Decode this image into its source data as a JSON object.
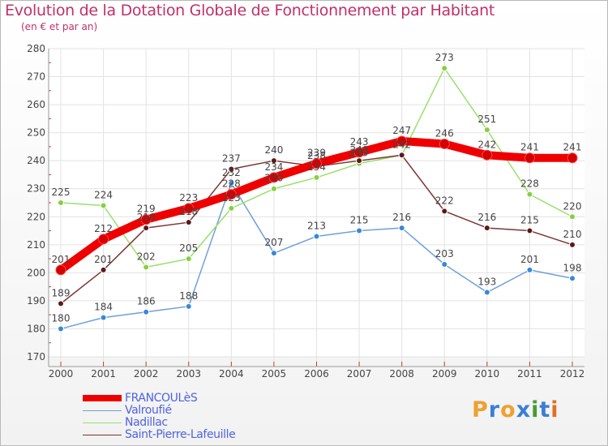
{
  "chart_data": {
    "type": "line",
    "title": "Evolution de la Dotation Globale de Fonctionnement par Habitant",
    "subtitle": "(en € et par an)",
    "x": [
      2000,
      2001,
      2002,
      2003,
      2004,
      2005,
      2006,
      2007,
      2008,
      2009,
      2010,
      2011,
      2012
    ],
    "x_tick_labels": [
      "2000",
      "2001",
      "2002",
      "2003",
      "2004",
      "2005",
      "2006",
      "2007",
      "2008",
      "2009",
      "2010",
      "2011",
      "2012"
    ],
    "ylim": [
      170,
      280
    ],
    "y_ticks": [
      170,
      180,
      190,
      200,
      210,
      220,
      230,
      240,
      250,
      260,
      270,
      280
    ],
    "grid": true,
    "series": [
      {
        "name": "FRANCOULèS",
        "color": "#ee0000",
        "marker": "#d40000",
        "emphasis": true,
        "values": [
          201,
          212,
          219,
          223,
          228,
          234,
          239,
          243,
          247,
          246,
          242,
          241,
          241
        ]
      },
      {
        "name": "Valroufié",
        "color": "#6fa0d8",
        "marker": "#3a88d6",
        "emphasis": false,
        "values": [
          180,
          184,
          186,
          188,
          232,
          207,
          213,
          215,
          216,
          203,
          193,
          201,
          198
        ]
      },
      {
        "name": "Nadillac",
        "color": "#99e06a",
        "marker": "#86d040",
        "emphasis": false,
        "values": [
          225,
          224,
          202,
          205,
          223,
          230,
          234,
          239,
          242,
          273,
          251,
          228,
          220
        ]
      },
      {
        "name": "Saint-Pierre-Lafeuille",
        "color": "#7b3535",
        "marker": "#5a1a1a",
        "emphasis": false,
        "values": [
          189,
          201,
          216,
          218,
          237,
          240,
          238,
          240,
          242,
          222,
          216,
          215,
          210
        ]
      }
    ],
    "data_labels": [
      {
        "series": 1,
        "values": [
          "180",
          "184",
          "186",
          "188",
          "232",
          "207",
          "213",
          "215",
          "216",
          "203",
          "193",
          "201",
          "198"
        ]
      },
      {
        "series": 2,
        "values": [
          "225",
          "224",
          "202",
          "205",
          "223",
          "230",
          "234",
          "239",
          "242",
          "273",
          "251",
          "228",
          "220"
        ]
      },
      {
        "series": 3,
        "values": [
          "189",
          "201",
          "216",
          "218",
          "237",
          "240",
          "238",
          "240",
          "242",
          "222",
          "216",
          "215",
          "210"
        ]
      },
      {
        "series": 0,
        "values": [
          "201",
          "212",
          "219",
          "223",
          "228",
          "234",
          "239",
          "243",
          "247",
          "246",
          "242",
          "241",
          "241"
        ]
      }
    ],
    "legend_position": "bottom-left"
  },
  "logo": {
    "letters": [
      "P",
      "r",
      "o",
      "x",
      "i",
      "t",
      "i"
    ],
    "colors": [
      "#f0a030",
      "#3a7fd5",
      "#f0a030",
      "#3a7fd5",
      "#4a9a30",
      "#3a7fd5",
      "#e07020"
    ]
  }
}
